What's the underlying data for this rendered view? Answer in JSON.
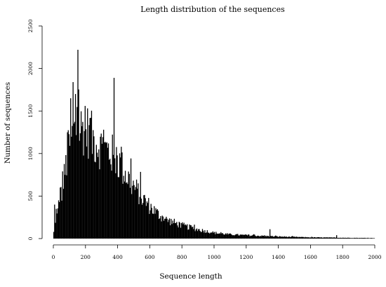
{
  "chart_data": {
    "type": "bar",
    "title": "Length distribution of the sequences",
    "xlabel": "Sequence length",
    "ylabel": "Number of sequences",
    "xlim": [
      0,
      2000
    ],
    "ylim": [
      0,
      2500
    ],
    "x_ticks": [
      0,
      200,
      400,
      600,
      800,
      1000,
      1200,
      1400,
      1600,
      1800,
      2000
    ],
    "y_ticks": [
      0,
      500,
      1000,
      1500,
      2000,
      2500
    ],
    "grid": false,
    "bar_color": "#000000",
    "bin_width": 5,
    "profile_x": [
      0,
      10,
      20,
      40,
      60,
      80,
      100,
      120,
      150,
      200,
      250,
      300,
      350,
      400,
      450,
      500,
      550,
      600,
      650,
      700,
      800,
      900,
      1000,
      1100,
      1200,
      1300,
      1400,
      1500,
      1600,
      1800,
      2000
    ],
    "profile_y": [
      50,
      150,
      250,
      450,
      650,
      900,
      1150,
      1250,
      1330,
      1340,
      1200,
      1100,
      1050,
      950,
      780,
      630,
      500,
      390,
      300,
      230,
      160,
      110,
      70,
      50,
      40,
      32,
      25,
      20,
      15,
      10,
      6
    ],
    "spikes": [
      {
        "x": 5,
        "y": 400
      },
      {
        "x": 15,
        "y": 350
      },
      {
        "x": 30,
        "y": 450
      },
      {
        "x": 40,
        "y": 600
      },
      {
        "x": 55,
        "y": 790
      },
      {
        "x": 85,
        "y": 1250
      },
      {
        "x": 105,
        "y": 1650
      },
      {
        "x": 120,
        "y": 1840
      },
      {
        "x": 135,
        "y": 1700
      },
      {
        "x": 150,
        "y": 2220
      },
      {
        "x": 195,
        "y": 1560
      },
      {
        "x": 230,
        "y": 1420
      },
      {
        "x": 310,
        "y": 1280
      },
      {
        "x": 375,
        "y": 1890
      },
      {
        "x": 420,
        "y": 1080
      },
      {
        "x": 1345,
        "y": 110
      },
      {
        "x": 1760,
        "y": 40
      }
    ]
  }
}
